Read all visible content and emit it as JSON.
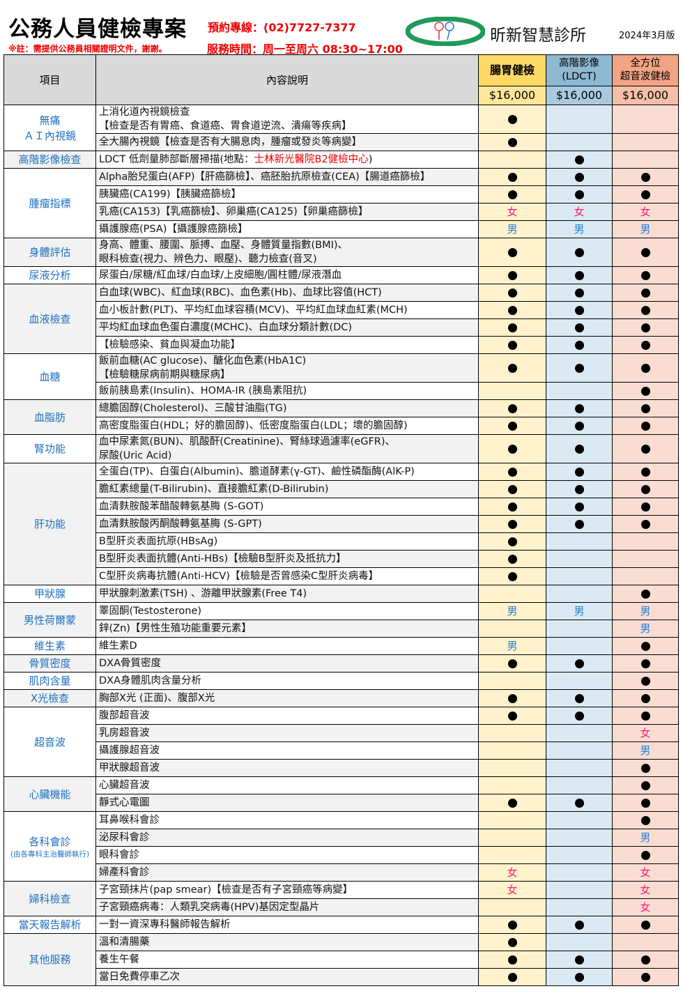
{
  "header": {
    "title": "公務人員健檢專案",
    "hotline": "預約專線：(02)7727-7377",
    "note": "※註：需提供公務員相關證明文件，謝謝。",
    "hours": "服務時間：周一至周六 08:30~17:00",
    "clinic_name": "昕新智慧診所",
    "edition": "2024年3月版"
  },
  "colors": {
    "accent_red": "#ee0000",
    "category_blue": "#1f6fbf",
    "male": "#1f7fd1",
    "female": "#ff1a75"
  },
  "table": {
    "col_item": "項目",
    "col_desc": "內容說明",
    "plans": [
      {
        "name": "腸胃健檢",
        "price": "$16,000"
      },
      {
        "name": "高階影像\n(LDCT)",
        "price": "$16,000"
      },
      {
        "name": "全方位\n超音波健檢",
        "price": "$16,000"
      }
    ],
    "marks": {
      "dot": "●",
      "male": "男",
      "female": "女"
    },
    "groups": [
      {
        "category": "無痛\nＡＩ內視鏡",
        "rows": [
          {
            "desc": "上消化道內視鏡檢查\n【檢查是否有胃癌、食道癌、胃食道逆流、潰瘍等疾病】",
            "m": [
              "dot",
              "",
              ""
            ]
          },
          {
            "desc": "全大腸內視鏡【檢查是否有大腸息肉，腫瘤或發炎等病變】",
            "m": [
              "dot",
              "",
              ""
            ]
          }
        ]
      },
      {
        "category": "高階影像檢查",
        "rows": [
          {
            "desc": "LDCT 低劑量肺部斷層掃描(地點：",
            "desc_red": "士林新光醫院B2健檢中心",
            "desc_end": ")",
            "m": [
              "",
              "dot",
              ""
            ]
          }
        ]
      },
      {
        "category": "腫瘤指標",
        "rows": [
          {
            "desc": "Alpha胎兒蛋白(AFP)【肝癌篩檢】、癌胚胎抗原檢查(CEA)【腸道癌篩檢】",
            "m": [
              "dot",
              "dot",
              "dot"
            ]
          },
          {
            "desc": "胰臟癌(CA199)【胰臟癌篩檢】",
            "m": [
              "dot",
              "dot",
              "dot"
            ]
          },
          {
            "desc": "乳癌(CA153)【乳癌篩檢】、卵巢癌(CA125)【卵巢癌篩檢】",
            "m": [
              "female",
              "female",
              "female"
            ]
          },
          {
            "desc": "攝護腺癌(PSA)【攝護腺癌篩檢】",
            "m": [
              "male",
              "male",
              "male"
            ]
          }
        ]
      },
      {
        "category": "身體評估",
        "rows": [
          {
            "desc": "身高、體重、腰圍、脈搏、血壓、身體質量指數(BMI)、\n眼科檢查(視力、辨色力、眼壓)、聽力檢查(音叉)",
            "m": [
              "dot",
              "dot",
              "dot"
            ]
          }
        ]
      },
      {
        "category": "尿液分析",
        "rows": [
          {
            "desc": "尿蛋白/尿糖/紅血球/白血球/上皮細胞/圓柱體/尿液潛血",
            "m": [
              "dot",
              "dot",
              "dot"
            ]
          }
        ]
      },
      {
        "category": "血液檢查",
        "rows": [
          {
            "desc": "白血球(WBC)、紅血球(RBC)、血色素(Hb)、血球比容值(HCT)",
            "m": [
              "dot",
              "dot",
              "dot"
            ]
          },
          {
            "desc": "血小板計數(PLT)、平均紅血球容積(MCV)、平均紅血球血紅素(MCH)",
            "m": [
              "dot",
              "dot",
              "dot"
            ]
          },
          {
            "desc": "平均紅血球血色蛋白濃度(MCHC)、白血球分類計數(DC)",
            "m": [
              "dot",
              "dot",
              "dot"
            ]
          },
          {
            "desc": "【檢驗感染、貧血與凝血功能】",
            "m": [
              "dot",
              "dot",
              "dot"
            ]
          }
        ]
      },
      {
        "category": "血糖",
        "rows": [
          {
            "desc": "飯前血糖(AC glucose)、醣化血色素(HbA1C)\n【檢驗糖尿病前期與糖尿病】",
            "m": [
              "dot",
              "dot",
              "dot"
            ]
          },
          {
            "desc": "飯前胰島素(Insulin)、HOMA-IR (胰島素阻抗)",
            "m": [
              "",
              "",
              "dot"
            ]
          }
        ]
      },
      {
        "category": "血脂肪",
        "rows": [
          {
            "desc": "總膽固醇(Cholesterol)、三酸甘油脂(TG)",
            "m": [
              "dot",
              "dot",
              "dot"
            ]
          },
          {
            "desc": "高密度脂蛋白(HDL；好的膽固醇)、低密度脂蛋白(LDL；壞的膽固醇)",
            "m": [
              "dot",
              "dot",
              "dot"
            ]
          }
        ]
      },
      {
        "category": "腎功能",
        "rows": [
          {
            "desc": "血中尿素氮(BUN)、肌酸酐(Creatinine)、腎絲球過濾率(eGFR)、\n尿酸(Uric Acid)",
            "m": [
              "dot",
              "dot",
              "dot"
            ]
          }
        ]
      },
      {
        "category": "肝功能",
        "rows": [
          {
            "desc": "全蛋白(TP)、白蛋白(Albumin)、膽道酵素(γ-GT)、鹼性磷酯酶(AlK-P)",
            "m": [
              "dot",
              "dot",
              "dot"
            ]
          },
          {
            "desc": "膽紅素總量(T-Bilirubin)、直接膽紅素(D-Bilirubin)",
            "m": [
              "dot",
              "dot",
              "dot"
            ]
          },
          {
            "desc": "血清麩胺酸苯醋酸轉氨基脢 (S-GOT)",
            "m": [
              "dot",
              "dot",
              "dot"
            ]
          },
          {
            "desc": "血清麩胺酸丙酮酸轉氨基脢 (S-GPT)",
            "m": [
              "dot",
              "dot",
              "dot"
            ]
          },
          {
            "desc": "B型肝炎表面抗原(HBsAg)",
            "m": [
              "dot",
              "",
              ""
            ]
          },
          {
            "desc": "B型肝炎表面抗體(Anti-HBs)【檢驗B型肝炎及抵抗力】",
            "m": [
              "dot",
              "",
              ""
            ]
          },
          {
            "desc": "C型肝炎病毒抗體(Anti-HCV)【檢驗是否曾感染C型肝炎病毒】",
            "m": [
              "dot",
              "",
              ""
            ]
          }
        ]
      },
      {
        "category": "甲狀腺",
        "rows": [
          {
            "desc": "甲狀腺刺激素(TSH) 、游離甲狀腺素(Free T4)",
            "m": [
              "",
              "",
              "dot"
            ]
          }
        ]
      },
      {
        "category": "男性荷爾蒙",
        "rows": [
          {
            "desc": "睪固酮(Testosterone)",
            "m": [
              "male",
              "male",
              "male"
            ]
          },
          {
            "desc": "鋅(Zn)【男性生殖功能重要元素】",
            "m": [
              "",
              "",
              "male"
            ]
          }
        ]
      },
      {
        "category": "維生素",
        "rows": [
          {
            "desc": "維生素D",
            "m": [
              "male",
              "",
              "dot"
            ]
          }
        ]
      },
      {
        "category": "骨質密度",
        "rows": [
          {
            "desc": "DXA骨質密度",
            "m": [
              "dot",
              "dot",
              "dot"
            ]
          }
        ]
      },
      {
        "category": "肌肉含量",
        "rows": [
          {
            "desc": "DXA身體肌肉含量分析",
            "m": [
              "",
              "",
              "dot"
            ]
          }
        ]
      },
      {
        "category": "X光檢查",
        "rows": [
          {
            "desc": "胸部X光 (正面)、腹部X光",
            "m": [
              "dot",
              "dot",
              "dot"
            ]
          }
        ]
      },
      {
        "category": "超音波",
        "rows": [
          {
            "desc": "腹部超音波",
            "m": [
              "dot",
              "dot",
              "dot"
            ]
          },
          {
            "desc": "乳房超音波",
            "m": [
              "",
              "",
              "female"
            ]
          },
          {
            "desc": "攝護腺超音波",
            "m": [
              "",
              "",
              "male"
            ]
          },
          {
            "desc": "甲狀腺超音波",
            "m": [
              "",
              "",
              "dot"
            ]
          }
        ]
      },
      {
        "category": "心臟機能",
        "rows": [
          {
            "desc": "心臟超音波",
            "m": [
              "",
              "",
              "dot"
            ]
          },
          {
            "desc": "靜式心電圖",
            "m": [
              "dot",
              "dot",
              "dot"
            ]
          }
        ]
      },
      {
        "category": "各科會診",
        "subcategory": "(由各專科主治醫師執行)",
        "rows": [
          {
            "desc": "耳鼻喉科會診",
            "m": [
              "",
              "",
              "dot"
            ]
          },
          {
            "desc": "泌尿科會診",
            "m": [
              "",
              "",
              "male"
            ]
          },
          {
            "desc": "眼科會診",
            "m": [
              "",
              "",
              "dot"
            ]
          },
          {
            "desc": "婦產科會診",
            "m": [
              "female",
              "",
              "female"
            ]
          }
        ]
      },
      {
        "category": "婦科檢查",
        "rows": [
          {
            "desc": "子宮頸抹片(pap smear)【檢查是否有子宮頸癌等病變】",
            "m": [
              "female",
              "",
              "female"
            ]
          },
          {
            "desc": "子宮頸癌病毒：人類乳突病毒(HPV)基因定型晶片",
            "m": [
              "",
              "",
              "female"
            ]
          }
        ]
      },
      {
        "category": "當天報告解析",
        "rows": [
          {
            "desc": "一對一資深專科醫師報告解析",
            "m": [
              "dot",
              "dot",
              "dot"
            ]
          }
        ]
      },
      {
        "category": "其他服務",
        "rows": [
          {
            "desc": "溫和清腸藥",
            "m": [
              "dot",
              "",
              ""
            ]
          },
          {
            "desc": "養生午餐",
            "m": [
              "dot",
              "dot",
              "dot"
            ]
          },
          {
            "desc": "當日免費停車乙次",
            "m": [
              "dot",
              "dot",
              "dot"
            ]
          }
        ]
      }
    ]
  }
}
